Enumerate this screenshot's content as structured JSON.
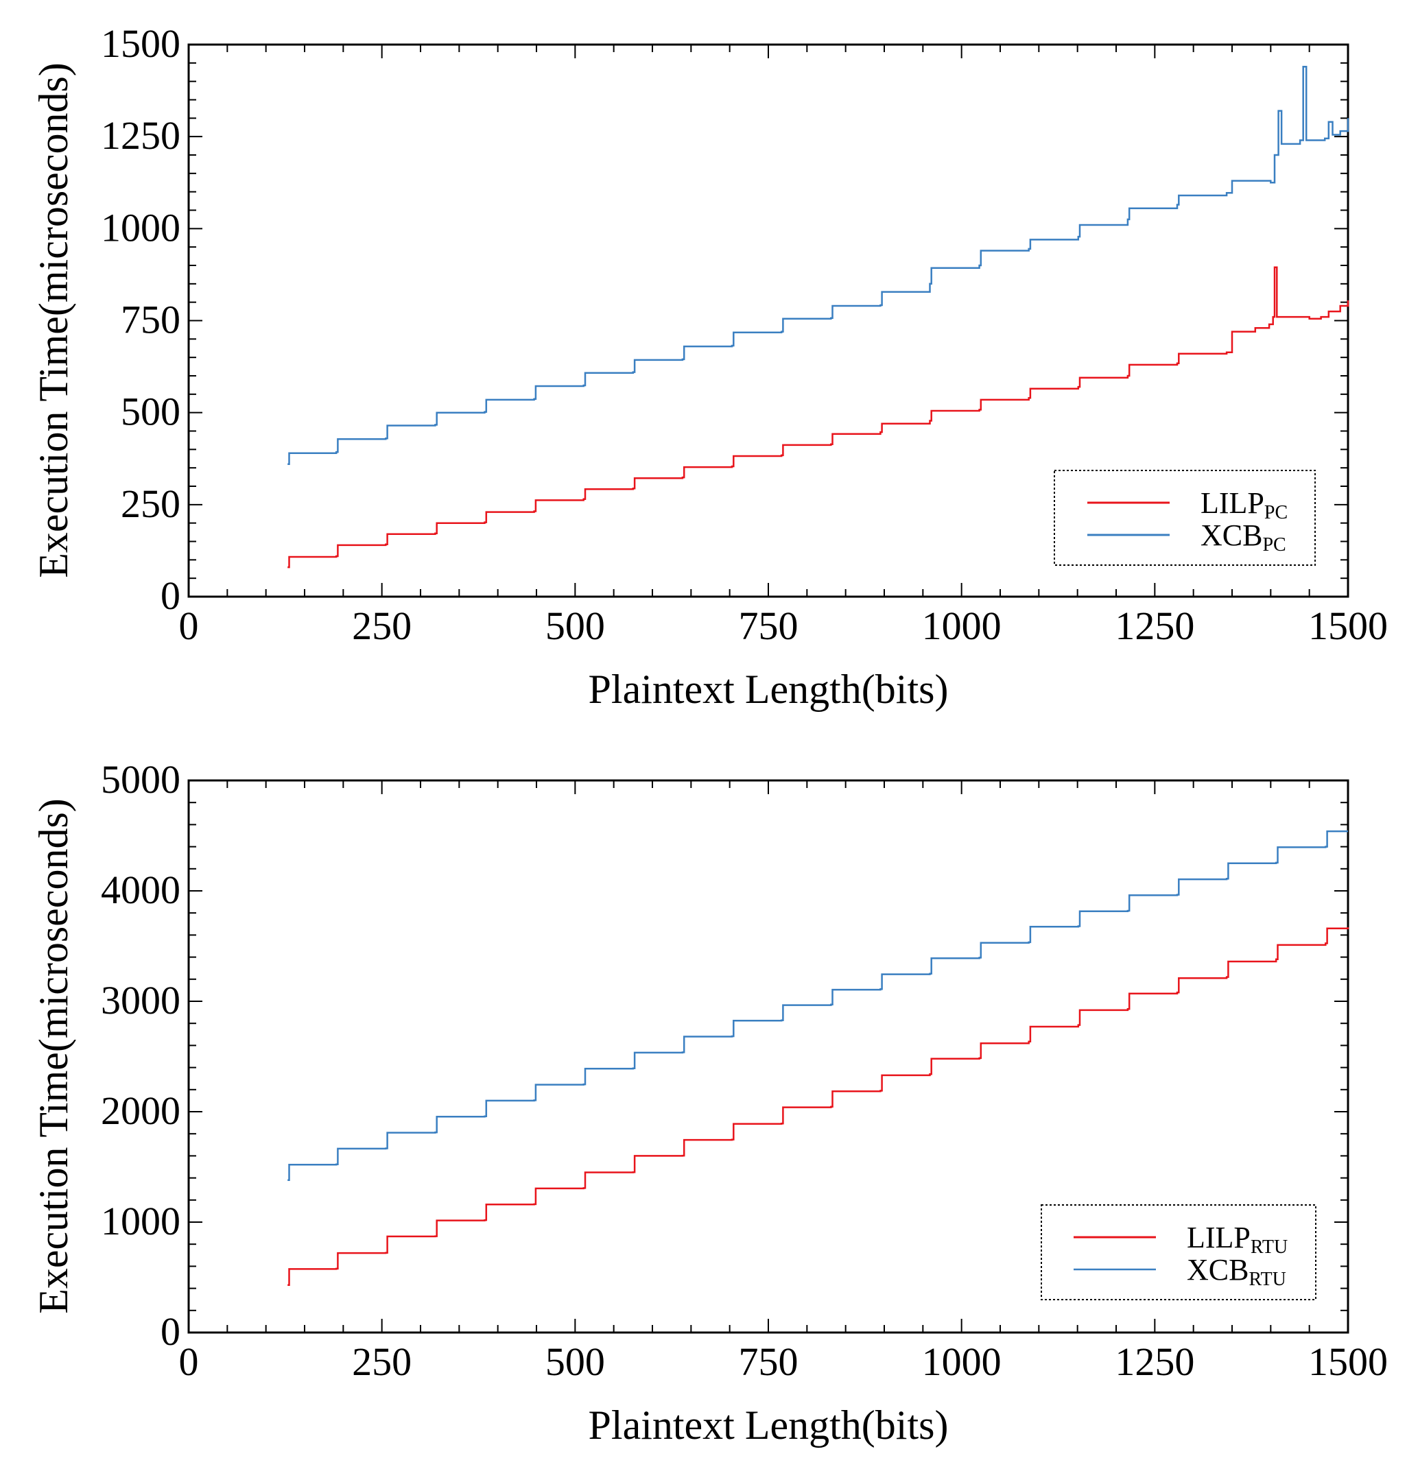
{
  "chart_data": [
    {
      "type": "line",
      "xlabel": "Plaintext Length(bits)",
      "ylabel": "Execution Time(microseconds)",
      "xlim": [
        0,
        1500
      ],
      "ylim": [
        0,
        1500
      ],
      "x_ticks": [
        0,
        250,
        500,
        750,
        1000,
        1250,
        1500
      ],
      "y_ticks": [
        0,
        250,
        500,
        750,
        1000,
        1250,
        1500
      ],
      "legend_position": "bottom-right",
      "series": [
        {
          "name": "LILP",
          "subscript": "PC",
          "color": "#e8141b",
          "points": [
            [
              128,
              80
            ],
            [
              130,
              108
            ],
            [
              191,
              110
            ],
            [
              193,
              140
            ],
            [
              255,
              142
            ],
            [
              257,
              170
            ],
            [
              319,
              172
            ],
            [
              321,
              200
            ],
            [
              383,
              202
            ],
            [
              385,
              230
            ],
            [
              447,
              232
            ],
            [
              449,
              262
            ],
            [
              511,
              265
            ],
            [
              513,
              292
            ],
            [
              575,
              294
            ],
            [
              577,
              322
            ],
            [
              639,
              324
            ],
            [
              641,
              352
            ],
            [
              703,
              354
            ],
            [
              705,
              382
            ],
            [
              767,
              384
            ],
            [
              769,
              412
            ],
            [
              831,
              414
            ],
            [
              833,
              442
            ],
            [
              895,
              447
            ],
            [
              897,
              470
            ],
            [
              959,
              478
            ],
            [
              961,
              505
            ],
            [
              1023,
              508
            ],
            [
              1025,
              535
            ],
            [
              1087,
              540
            ],
            [
              1089,
              565
            ],
            [
              1151,
              570
            ],
            [
              1153,
              595
            ],
            [
              1215,
              600
            ],
            [
              1217,
              630
            ],
            [
              1279,
              634
            ],
            [
              1281,
              660
            ],
            [
              1343,
              664
            ],
            [
              1350,
              720
            ],
            [
              1380,
              730
            ],
            [
              1398,
              740
            ],
            [
              1403,
              760
            ],
            [
              1405,
              895
            ],
            [
              1408,
              760
            ],
            [
              1450,
              755
            ],
            [
              1465,
              760
            ],
            [
              1475,
              775
            ],
            [
              1490,
              790
            ],
            [
              1500,
              805
            ]
          ]
        },
        {
          "name": "XCB",
          "subscript": "PC",
          "color": "#3a7fc1",
          "points": [
            [
              128,
              360
            ],
            [
              130,
              390
            ],
            [
              191,
              393
            ],
            [
              193,
              428
            ],
            [
              255,
              430
            ],
            [
              257,
              465
            ],
            [
              319,
              467
            ],
            [
              321,
              500
            ],
            [
              383,
              502
            ],
            [
              385,
              535
            ],
            [
              447,
              537
            ],
            [
              449,
              572
            ],
            [
              511,
              574
            ],
            [
              513,
              608
            ],
            [
              575,
              610
            ],
            [
              577,
              643
            ],
            [
              639,
              645
            ],
            [
              641,
              680
            ],
            [
              703,
              682
            ],
            [
              705,
              718
            ],
            [
              767,
              720
            ],
            [
              769,
              755
            ],
            [
              831,
              757
            ],
            [
              833,
              790
            ],
            [
              895,
              792
            ],
            [
              897,
              828
            ],
            [
              959,
              850
            ],
            [
              961,
              893
            ],
            [
              1023,
              900
            ],
            [
              1025,
              940
            ],
            [
              1087,
              945
            ],
            [
              1089,
              970
            ],
            [
              1151,
              978
            ],
            [
              1153,
              1010
            ],
            [
              1215,
              1025
            ],
            [
              1217,
              1055
            ],
            [
              1279,
              1065
            ],
            [
              1281,
              1090
            ],
            [
              1343,
              1097
            ],
            [
              1350,
              1130
            ],
            [
              1400,
              1125
            ],
            [
              1405,
              1200
            ],
            [
              1410,
              1320
            ],
            [
              1414,
              1230
            ],
            [
              1438,
              1240
            ],
            [
              1442,
              1440
            ],
            [
              1446,
              1240
            ],
            [
              1470,
              1245
            ],
            [
              1475,
              1290
            ],
            [
              1480,
              1255
            ],
            [
              1490,
              1265
            ],
            [
              1500,
              1300
            ]
          ]
        }
      ]
    },
    {
      "type": "line",
      "xlabel": "Plaintext Length(bits)",
      "ylabel": "Execution Time(microseconds)",
      "xlim": [
        0,
        1500
      ],
      "ylim": [
        0,
        5000
      ],
      "x_ticks": [
        0,
        250,
        500,
        750,
        1000,
        1250,
        1500
      ],
      "y_ticks": [
        0,
        1000,
        2000,
        3000,
        4000,
        5000
      ],
      "legend_position": "bottom-right",
      "series": [
        {
          "name": "LILP",
          "subscript": "RTU",
          "color": "#e8141b",
          "points": [
            [
              128,
              430
            ],
            [
              130,
              575
            ],
            [
              191,
              578
            ],
            [
              193,
              720
            ],
            [
              255,
              722
            ],
            [
              257,
              870
            ],
            [
              319,
              872
            ],
            [
              321,
              1015
            ],
            [
              383,
              1018
            ],
            [
              385,
              1160
            ],
            [
              447,
              1162
            ],
            [
              449,
              1305
            ],
            [
              511,
              1308
            ],
            [
              513,
              1450
            ],
            [
              575,
              1452
            ],
            [
              577,
              1600
            ],
            [
              639,
              1602
            ],
            [
              641,
              1745
            ],
            [
              703,
              1748
            ],
            [
              705,
              1890
            ],
            [
              767,
              1893
            ],
            [
              769,
              2040
            ],
            [
              831,
              2045
            ],
            [
              833,
              2185
            ],
            [
              895,
              2190
            ],
            [
              897,
              2330
            ],
            [
              959,
              2340
            ],
            [
              961,
              2480
            ],
            [
              1023,
              2485
            ],
            [
              1025,
              2620
            ],
            [
              1087,
              2635
            ],
            [
              1089,
              2770
            ],
            [
              1151,
              2785
            ],
            [
              1153,
              2920
            ],
            [
              1215,
              2930
            ],
            [
              1217,
              3070
            ],
            [
              1279,
              3080
            ],
            [
              1281,
              3210
            ],
            [
              1343,
              3220
            ],
            [
              1345,
              3360
            ],
            [
              1407,
              3380
            ],
            [
              1409,
              3510
            ],
            [
              1471,
              3525
            ],
            [
              1473,
              3660
            ],
            [
              1500,
              3670
            ]
          ]
        },
        {
          "name": "XCB",
          "subscript": "RTU",
          "color": "#3a7fc1",
          "points": [
            [
              128,
              1380
            ],
            [
              130,
              1520
            ],
            [
              191,
              1523
            ],
            [
              193,
              1665
            ],
            [
              255,
              1668
            ],
            [
              257,
              1810
            ],
            [
              319,
              1813
            ],
            [
              321,
              1955
            ],
            [
              383,
              1958
            ],
            [
              385,
              2100
            ],
            [
              447,
              2103
            ],
            [
              449,
              2245
            ],
            [
              511,
              2248
            ],
            [
              513,
              2390
            ],
            [
              575,
              2393
            ],
            [
              577,
              2535
            ],
            [
              639,
              2538
            ],
            [
              641,
              2680
            ],
            [
              703,
              2683
            ],
            [
              705,
              2825
            ],
            [
              767,
              2828
            ],
            [
              769,
              2965
            ],
            [
              831,
              2970
            ],
            [
              833,
              3105
            ],
            [
              895,
              3110
            ],
            [
              897,
              3245
            ],
            [
              959,
              3250
            ],
            [
              961,
              3390
            ],
            [
              1023,
              3395
            ],
            [
              1025,
              3530
            ],
            [
              1087,
              3535
            ],
            [
              1089,
              3675
            ],
            [
              1151,
              3680
            ],
            [
              1153,
              3815
            ],
            [
              1215,
              3820
            ],
            [
              1217,
              3960
            ],
            [
              1279,
              3965
            ],
            [
              1281,
              4105
            ],
            [
              1343,
              4110
            ],
            [
              1345,
              4250
            ],
            [
              1407,
              4255
            ],
            [
              1409,
              4395
            ],
            [
              1471,
              4400
            ],
            [
              1473,
              4540
            ],
            [
              1500,
              4540
            ]
          ]
        }
      ]
    }
  ]
}
